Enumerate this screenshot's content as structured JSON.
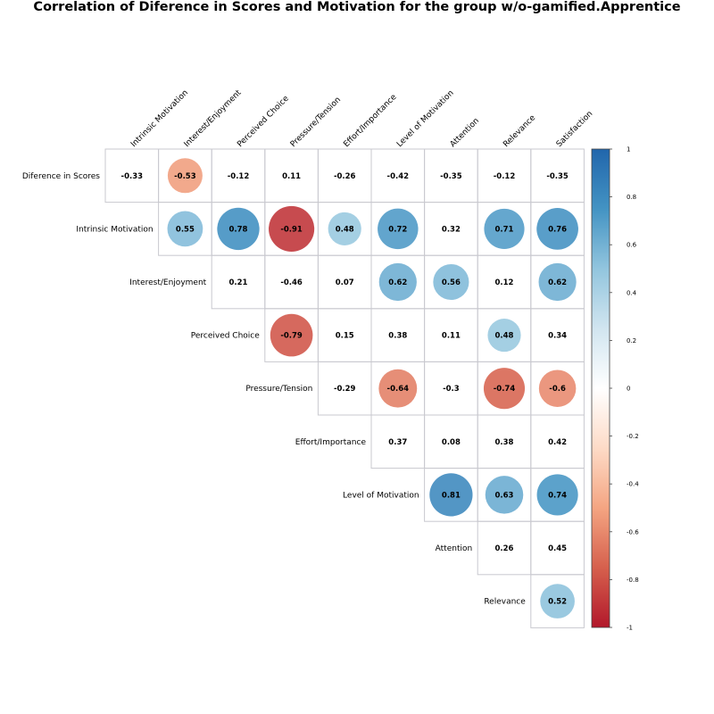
{
  "chart_data": {
    "type": "heatmap",
    "title": "Correlation of Diference in Scores and Motivation for the group w/o-gamified.Apprentice",
    "row_labels": [
      "Diference in Scores",
      "Intrinsic Motivation",
      "Interest/Enjoyment",
      "Perceived Choice",
      "Pressure/Tension",
      "Effort/Importance",
      "Level of Motivation",
      "Attention",
      "Relevance"
    ],
    "col_labels": [
      "Intrinsic Motivation",
      "Interest/Enjoyment",
      "Perceived Choice",
      "Pressure/Tension",
      "Effort/Importance",
      "Level of Motivation",
      "Attention",
      "Relevance",
      "Satisfaction"
    ],
    "cells": [
      {
        "row": 0,
        "col": 0,
        "value": -0.33,
        "label": "-0.33",
        "circle": false
      },
      {
        "row": 0,
        "col": 1,
        "value": -0.53,
        "label": "-0.53",
        "circle": true
      },
      {
        "row": 0,
        "col": 2,
        "value": -0.12,
        "label": "-0.12",
        "circle": false
      },
      {
        "row": 0,
        "col": 3,
        "value": 0.11,
        "label": "0.11",
        "circle": false
      },
      {
        "row": 0,
        "col": 4,
        "value": -0.26,
        "label": "-0.26",
        "circle": false
      },
      {
        "row": 0,
        "col": 5,
        "value": -0.42,
        "label": "-0.42",
        "circle": false
      },
      {
        "row": 0,
        "col": 6,
        "value": -0.35,
        "label": "-0.35",
        "circle": false
      },
      {
        "row": 0,
        "col": 7,
        "value": -0.12,
        "label": "-0.12",
        "circle": false
      },
      {
        "row": 0,
        "col": 8,
        "value": -0.35,
        "label": "-0.35",
        "circle": false
      },
      {
        "row": 1,
        "col": 1,
        "value": 0.55,
        "label": "0.55",
        "circle": true
      },
      {
        "row": 1,
        "col": 2,
        "value": 0.78,
        "label": "0.78",
        "circle": true
      },
      {
        "row": 1,
        "col": 3,
        "value": -0.91,
        "label": "-0.91",
        "circle": true
      },
      {
        "row": 1,
        "col": 4,
        "value": 0.48,
        "label": "0.48",
        "circle": true
      },
      {
        "row": 1,
        "col": 5,
        "value": 0.72,
        "label": "0.72",
        "circle": true
      },
      {
        "row": 1,
        "col": 6,
        "value": 0.32,
        "label": "0.32",
        "circle": false
      },
      {
        "row": 1,
        "col": 7,
        "value": 0.71,
        "label": "0.71",
        "circle": true
      },
      {
        "row": 1,
        "col": 8,
        "value": 0.76,
        "label": "0.76",
        "circle": true
      },
      {
        "row": 2,
        "col": 2,
        "value": 0.21,
        "label": "0.21",
        "circle": false
      },
      {
        "row": 2,
        "col": 3,
        "value": -0.46,
        "label": "-0.46",
        "circle": false
      },
      {
        "row": 2,
        "col": 4,
        "value": 0.07,
        "label": "0.07",
        "circle": false
      },
      {
        "row": 2,
        "col": 5,
        "value": 0.62,
        "label": "0.62",
        "circle": true
      },
      {
        "row": 2,
        "col": 6,
        "value": 0.56,
        "label": "0.56",
        "circle": true
      },
      {
        "row": 2,
        "col": 7,
        "value": 0.12,
        "label": "0.12",
        "circle": false
      },
      {
        "row": 2,
        "col": 8,
        "value": 0.62,
        "label": "0.62",
        "circle": true
      },
      {
        "row": 3,
        "col": 3,
        "value": -0.79,
        "label": "-0.79",
        "circle": true
      },
      {
        "row": 3,
        "col": 4,
        "value": 0.15,
        "label": "0.15",
        "circle": false
      },
      {
        "row": 3,
        "col": 5,
        "value": 0.38,
        "label": "0.38",
        "circle": false
      },
      {
        "row": 3,
        "col": 6,
        "value": 0.11,
        "label": "0.11",
        "circle": false
      },
      {
        "row": 3,
        "col": 7,
        "value": 0.48,
        "label": "0.48",
        "circle": true
      },
      {
        "row": 3,
        "col": 8,
        "value": 0.34,
        "label": "0.34",
        "circle": false
      },
      {
        "row": 4,
        "col": 4,
        "value": -0.29,
        "label": "-0.29",
        "circle": false
      },
      {
        "row": 4,
        "col": 5,
        "value": -0.64,
        "label": "-0.64",
        "circle": true
      },
      {
        "row": 4,
        "col": 6,
        "value": -0.3,
        "label": "-0.3",
        "circle": false
      },
      {
        "row": 4,
        "col": 7,
        "value": -0.74,
        "label": "-0.74",
        "circle": true
      },
      {
        "row": 4,
        "col": 8,
        "value": -0.6,
        "label": "-0.6",
        "circle": true
      },
      {
        "row": 5,
        "col": 5,
        "value": 0.37,
        "label": "0.37",
        "circle": false
      },
      {
        "row": 5,
        "col": 6,
        "value": 0.08,
        "label": "0.08",
        "circle": false
      },
      {
        "row": 5,
        "col": 7,
        "value": 0.38,
        "label": "0.38",
        "circle": false
      },
      {
        "row": 5,
        "col": 8,
        "value": 0.42,
        "label": "0.42",
        "circle": false
      },
      {
        "row": 6,
        "col": 6,
        "value": 0.81,
        "label": "0.81",
        "circle": true
      },
      {
        "row": 6,
        "col": 7,
        "value": 0.63,
        "label": "0.63",
        "circle": true
      },
      {
        "row": 6,
        "col": 8,
        "value": 0.74,
        "label": "0.74",
        "circle": true
      },
      {
        "row": 7,
        "col": 7,
        "value": 0.26,
        "label": "0.26",
        "circle": false
      },
      {
        "row": 7,
        "col": 8,
        "value": 0.45,
        "label": "0.45",
        "circle": false
      },
      {
        "row": 8,
        "col": 8,
        "value": 0.52,
        "label": "0.52",
        "circle": true
      }
    ],
    "colorbar": {
      "range": [
        -1,
        1
      ],
      "ticks": [
        {
          "value": 1,
          "label": "1"
        },
        {
          "value": 0.8,
          "label": "0.8"
        },
        {
          "value": 0.6,
          "label": "0.6"
        },
        {
          "value": 0.4,
          "label": "0.4"
        },
        {
          "value": 0.2,
          "label": "0.2"
        },
        {
          "value": 0,
          "label": "0"
        },
        {
          "value": -0.2,
          "label": "-0.2"
        },
        {
          "value": -0.4,
          "label": "-0.4"
        },
        {
          "value": -0.6,
          "label": "-0.6"
        },
        {
          "value": -0.8,
          "label": "-0.8"
        },
        {
          "value": -1,
          "label": "-1"
        }
      ]
    },
    "colors": {
      "negative": "#b2182b",
      "neutral": "#ffffff",
      "positive": "#2166ac",
      "colormap": "RdBu"
    },
    "grid": true,
    "legend_placement": "right"
  }
}
